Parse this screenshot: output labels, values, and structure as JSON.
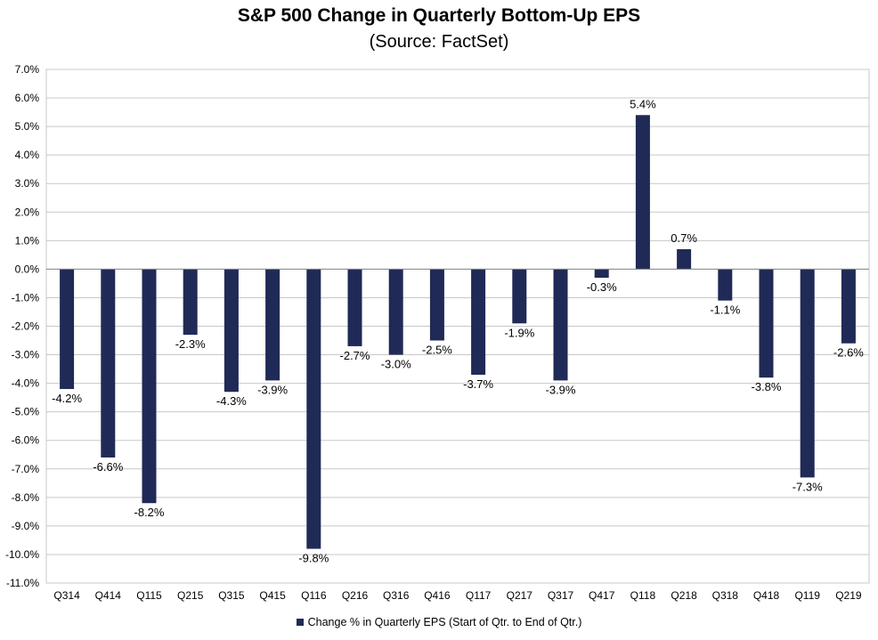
{
  "chart_data": {
    "type": "bar",
    "title": "S&P 500 Change in Quarterly Bottom-Up EPS",
    "subtitle": "(Source: FactSet)",
    "categories": [
      "Q314",
      "Q414",
      "Q115",
      "Q215",
      "Q315",
      "Q415",
      "Q116",
      "Q216",
      "Q316",
      "Q416",
      "Q117",
      "Q217",
      "Q317",
      "Q417",
      "Q118",
      "Q218",
      "Q318",
      "Q418",
      "Q119",
      "Q219"
    ],
    "series": [
      {
        "name": "Change % in Quarterly EPS (Start of Qtr. to End of Qtr.)",
        "values": [
          -4.2,
          -6.6,
          -8.2,
          -2.3,
          -4.3,
          -3.9,
          -9.8,
          -2.7,
          -3.0,
          -2.5,
          -3.7,
          -1.9,
          -3.9,
          -0.3,
          5.4,
          0.7,
          -1.1,
          -3.8,
          -7.3,
          -2.6
        ],
        "data_labels": [
          "-4.2%",
          "-6.6%",
          "-8.2%",
          "-2.3%",
          "-4.3%",
          "-3.9%",
          "-9.8%",
          "-2.7%",
          "-3.0%",
          "-2.5%",
          "-3.7%",
          "-1.9%",
          "-3.9%",
          "-0.3%",
          "5.4%",
          "0.7%",
          "-1.1%",
          "-3.8%",
          "-7.3%",
          "-2.6%"
        ],
        "color": "#1f2a56"
      }
    ],
    "ylim": [
      -11,
      7
    ],
    "yticks": [
      7,
      6,
      5,
      4,
      3,
      2,
      1,
      0,
      -1,
      -2,
      -3,
      -4,
      -5,
      -6,
      -7,
      -8,
      -9,
      -10,
      -11
    ],
    "ytick_labels": [
      "7.0%",
      "6.0%",
      "5.0%",
      "4.0%",
      "3.0%",
      "2.0%",
      "1.0%",
      "0.0%",
      "-1.0%",
      "-2.0%",
      "-3.0%",
      "-4.0%",
      "-5.0%",
      "-6.0%",
      "-7.0%",
      "-8.0%",
      "-9.0%",
      "-10.0%",
      "-11.0%"
    ],
    "grid": true,
    "legend_position": "bottom"
  }
}
